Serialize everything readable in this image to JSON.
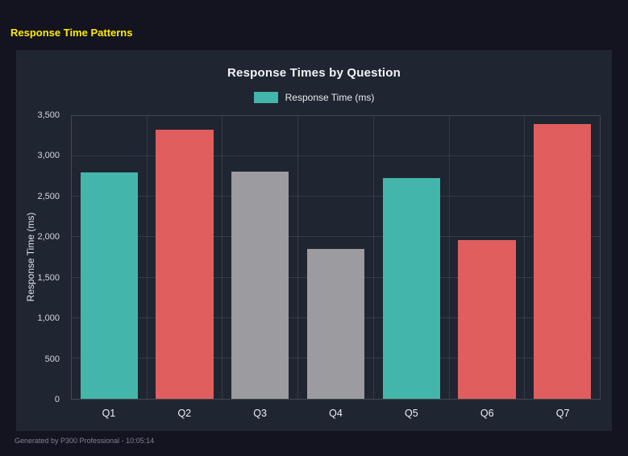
{
  "page": {
    "title": "Response Time Patterns"
  },
  "footer": {
    "text": "Generated by P300 Professional - 10:05:14"
  },
  "chart_data": {
    "type": "bar",
    "title": "Response Times by Question",
    "legend_label": "Response Time (ms)",
    "legend_position": "top",
    "xlabel": "",
    "ylabel": "Response Time (ms)",
    "categories": [
      "Q1",
      "Q2",
      "Q3",
      "Q4",
      "Q5",
      "Q6",
      "Q7"
    ],
    "values": [
      2800,
      3330,
      2810,
      1850,
      2730,
      1960,
      3400
    ],
    "bar_colors": [
      "#44b5aa",
      "#e15e5e",
      "#9b9ba0",
      "#9b9ba0",
      "#44b5aa",
      "#e15e5e",
      "#e15e5e"
    ],
    "ylim": [
      0,
      3500
    ],
    "yticks": [
      0,
      500,
      1000,
      1500,
      2000,
      2500,
      3000,
      3500
    ],
    "ytick_labels": [
      "0",
      "500",
      "1,000",
      "1,500",
      "2,000",
      "2,500",
      "3,000",
      "3,500"
    ],
    "grid": true,
    "colors": {
      "teal": "#44b5aa",
      "red": "#e15e5e",
      "gray": "#9b9ba0",
      "accent_yellow": "#ffec00",
      "panel_bg": "#1f2531",
      "page_bg": "#131420"
    }
  }
}
